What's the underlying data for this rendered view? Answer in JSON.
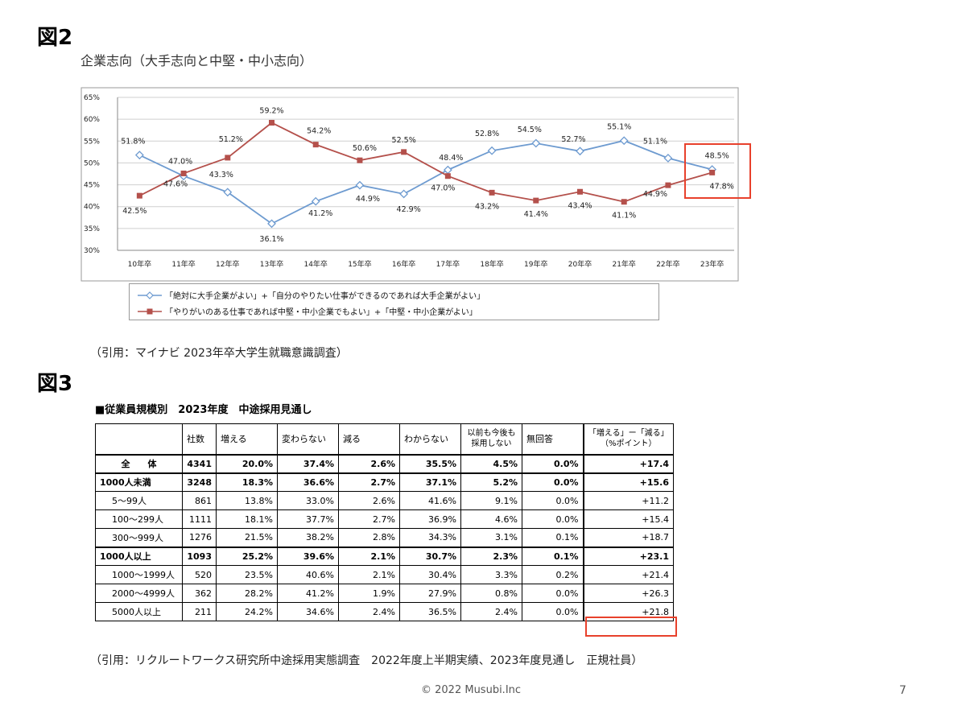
{
  "figure2": {
    "label": "図2",
    "subtitle": "企業志向（大手志向と中堅・中小志向）",
    "citation": "（引用：マイナビ 2023年卒大学生就職意識調査）"
  },
  "chart_data": {
    "type": "line",
    "title": "",
    "xlabel": "",
    "ylabel": "",
    "ylim": [
      30,
      65
    ],
    "yticks": [
      "65%",
      "60%",
      "55%",
      "50%",
      "45%",
      "40%",
      "35%",
      "30%"
    ],
    "categories": [
      "10年卒",
      "11年卒",
      "12年卒",
      "13年卒",
      "14年卒",
      "15年卒",
      "16年卒",
      "17年卒",
      "18年卒",
      "19年卒",
      "20年卒",
      "21年卒",
      "22年卒",
      "23年卒"
    ],
    "legend_placement": "bottom",
    "grid": true,
    "series": [
      {
        "name": "「絶対に大手企業がよい」+「自分のやりたい仕事ができるのであれば大手企業がよい」",
        "color": "#6e9bd0",
        "marker": "diamond-open",
        "values": [
          51.8,
          47.0,
          43.3,
          36.1,
          41.2,
          44.9,
          42.9,
          48.4,
          52.8,
          54.5,
          52.7,
          55.1,
          51.1,
          48.5
        ],
        "labels": [
          "51.8%",
          "47.0%",
          "43.3%",
          "36.1%",
          "41.2%",
          "44.9%",
          "42.9%",
          "48.4%",
          "52.8%",
          "54.5%",
          "52.7%",
          "55.1%",
          "51.1%",
          "48.5%"
        ]
      },
      {
        "name": "「やりがいのある仕事であれば中堅・中小企業でもよい」+「中堅・中小企業がよい」",
        "color": "#b4504b",
        "marker": "square",
        "values": [
          42.5,
          47.6,
          51.2,
          59.2,
          54.2,
          50.6,
          52.5,
          47.0,
          43.2,
          41.4,
          43.4,
          41.1,
          44.9,
          47.8
        ],
        "labels": [
          "42.5%",
          "47.6%",
          "51.2%",
          "59.2%",
          "54.2%",
          "50.6%",
          "52.5%",
          "47.0%",
          "43.2%",
          "41.4%",
          "43.4%",
          "41.1%",
          "44.9%",
          "47.8%"
        ]
      }
    ]
  },
  "figure3": {
    "label": "図3",
    "table_title": "■従業員規模別　2023年度　中途採用見通し",
    "citation": "（引用：リクルートワークス研究所中途採用実態調査　2022年度上半期実績、2023年度見通し　正規社員）",
    "headers": [
      "",
      "社数",
      "増える",
      "変わらない",
      "減る",
      "わからない",
      "以前も今後も採用しない",
      "無回答",
      "「増える」ー「減る」（%ポイント）"
    ],
    "rows": [
      {
        "label": "全　　体",
        "type": "total",
        "cells": [
          "4341",
          "20.0%",
          "37.4%",
          "2.6%",
          "35.5%",
          "4.5%",
          "0.0%",
          "+17.4"
        ]
      },
      {
        "label": "1000人未満",
        "type": "group",
        "cells": [
          "3248",
          "18.3%",
          "36.6%",
          "2.7%",
          "37.1%",
          "5.2%",
          "0.0%",
          "+15.6"
        ]
      },
      {
        "label": "5～99人",
        "type": "sub",
        "cells": [
          "861",
          "13.8%",
          "33.0%",
          "2.6%",
          "41.6%",
          "9.1%",
          "0.0%",
          "+11.2"
        ]
      },
      {
        "label": "100～299人",
        "type": "sub",
        "cells": [
          "1111",
          "18.1%",
          "37.7%",
          "2.7%",
          "36.9%",
          "4.6%",
          "0.0%",
          "+15.4"
        ]
      },
      {
        "label": "300～999人",
        "type": "sub",
        "cells": [
          "1276",
          "21.5%",
          "38.2%",
          "2.8%",
          "34.3%",
          "3.1%",
          "0.1%",
          "+18.7"
        ]
      },
      {
        "label": "1000人以上",
        "type": "group",
        "cells": [
          "1093",
          "25.2%",
          "39.6%",
          "2.1%",
          "30.7%",
          "2.3%",
          "0.1%",
          "+23.1"
        ]
      },
      {
        "label": "1000～1999人",
        "type": "sub",
        "cells": [
          "520",
          "23.5%",
          "40.6%",
          "2.1%",
          "30.4%",
          "3.3%",
          "0.2%",
          "+21.4"
        ]
      },
      {
        "label": "2000～4999人",
        "type": "sub",
        "cells": [
          "362",
          "28.2%",
          "41.2%",
          "1.9%",
          "27.9%",
          "0.8%",
          "0.0%",
          "+26.3"
        ]
      },
      {
        "label": "5000人以上",
        "type": "sub",
        "cells": [
          "211",
          "24.2%",
          "34.6%",
          "2.4%",
          "36.5%",
          "2.4%",
          "0.0%",
          "+21.8"
        ]
      }
    ]
  },
  "footer": {
    "copyright": "© 2022 Musubi.Inc",
    "page_number": "7"
  },
  "colors": {
    "highlight": "#e8412c",
    "series_blue": "#6e9bd0",
    "series_red": "#b4504b"
  }
}
